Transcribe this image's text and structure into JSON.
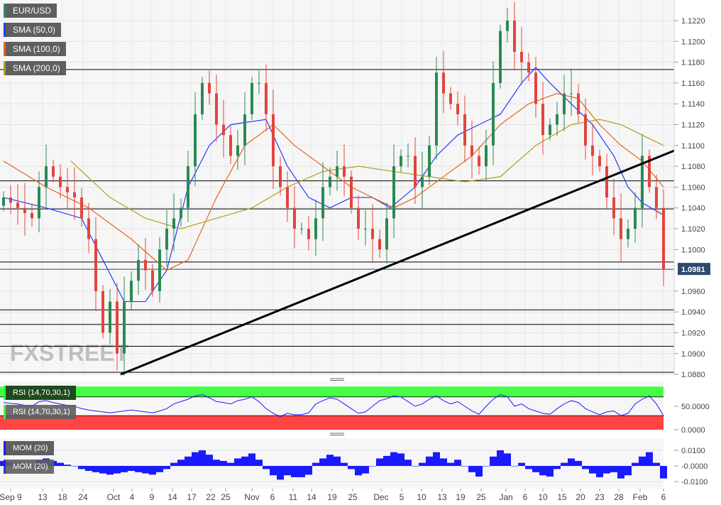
{
  "legend": {
    "symbol": {
      "label": "EUR/USD",
      "color": "#2e8b70"
    },
    "sma50": {
      "label": "SMA (50,0)",
      "color": "#1f3cff"
    },
    "sma100": {
      "label": "SMA (100,0)",
      "color": "#e8641e"
    },
    "sma200": {
      "label": "SMA (200,0)",
      "color": "#b0a020"
    },
    "rsi": {
      "label": "RSI (14,70,30,1)"
    },
    "mom": {
      "label": "MOM (20)"
    }
  },
  "watermark": "FXSTREET",
  "colors": {
    "up": "#2a8a52",
    "down": "#e2453c",
    "rsi_overbought": "#44ff44",
    "rsi_oversold": "#ff4444",
    "indicator": "#1a1aff",
    "price_badge": "#2d4a6e"
  },
  "chart_data": [
    {
      "type": "candlestick",
      "title": "EUR/USD",
      "ylim": [
        1.0875,
        1.124
      ],
      "y_ticks": [
        "1.1220",
        "1.1200",
        "1.1180",
        "1.1160",
        "1.1140",
        "1.1120",
        "1.1100",
        "1.1080",
        "1.1060",
        "1.1040",
        "1.1020",
        "1.1000",
        "1.0960",
        "1.0940",
        "1.0920",
        "1.0900",
        "1.0880"
      ],
      "x_ticks": [
        "Sep 9",
        "13",
        "18",
        "24",
        "Oct",
        "4",
        "9",
        "14",
        "17",
        "22",
        "25",
        "Nov",
        "6",
        "11",
        "14",
        "19",
        "25",
        "Dec",
        "5",
        "10",
        "13",
        "19",
        "25",
        "Jan",
        "6",
        "10",
        "15",
        "20",
        "23",
        "28",
        "Feb",
        "6"
      ],
      "closes": [
        1.105,
        1.1045,
        1.104,
        1.1035,
        1.103,
        1.106,
        1.108,
        1.107,
        1.106,
        1.1055,
        1.105,
        1.103,
        1.101,
        1.096,
        1.092,
        1.095,
        1.09,
        1.095,
        1.097,
        1.099,
        1.098,
        1.096,
        1.1,
        1.102,
        1.103,
        1.104,
        1.108,
        1.113,
        1.116,
        1.115,
        1.112,
        1.111,
        1.109,
        1.11,
        1.113,
        1.116,
        1.116,
        1.113,
        1.108,
        1.106,
        1.104,
        1.102,
        1.102,
        1.101,
        1.103,
        1.106,
        1.107,
        1.108,
        1.107,
        1.104,
        1.102,
        1.102,
        1.101,
        1.1,
        1.103,
        1.108,
        1.109,
        1.109,
        1.106,
        1.107,
        1.11,
        1.117,
        1.115,
        1.114,
        1.113,
        1.11,
        1.109,
        1.108,
        1.11,
        1.116,
        1.121,
        1.122,
        1.119,
        1.118,
        1.117,
        1.114,
        1.111,
        1.112,
        1.113,
        1.115,
        1.115,
        1.113,
        1.11,
        1.109,
        1.108,
        1.105,
        1.103,
        1.101,
        1.102,
        1.104,
        1.109,
        1.106,
        1.104,
        1.0981
      ],
      "current_price": "1.0981",
      "sma50": [
        [
          0,
          1.105
        ],
        [
          6,
          1.104
        ],
        [
          11,
          1.103
        ],
        [
          14,
          1.099
        ],
        [
          17,
          1.095
        ],
        [
          20,
          1.095
        ],
        [
          23,
          1.098
        ],
        [
          26,
          1.106
        ],
        [
          29,
          1.11
        ],
        [
          32,
          1.112
        ],
        [
          37,
          1.1125
        ],
        [
          40,
          1.108
        ],
        [
          43,
          1.105
        ],
        [
          46,
          1.104
        ],
        [
          49,
          1.105
        ],
        [
          52,
          1.105
        ],
        [
          54.5,
          1.104
        ],
        [
          58,
          1.106
        ],
        [
          61,
          1.109
        ],
        [
          64,
          1.111
        ],
        [
          67,
          1.112
        ],
        [
          70,
          1.113
        ],
        [
          73,
          1.116
        ],
        [
          75,
          1.1175
        ],
        [
          77,
          1.116
        ],
        [
          80,
          1.114
        ],
        [
          83,
          1.112
        ],
        [
          86,
          1.109
        ],
        [
          88,
          1.106
        ],
        [
          90,
          1.1045
        ],
        [
          93,
          1.1033
        ]
      ],
      "sma100": [
        [
          0,
          1.1085
        ],
        [
          6,
          1.106
        ],
        [
          12,
          1.104
        ],
        [
          18,
          1.101
        ],
        [
          23,
          1.098
        ],
        [
          26,
          1.099
        ],
        [
          30,
          1.105
        ],
        [
          34,
          1.11
        ],
        [
          38,
          1.112
        ],
        [
          41,
          1.11
        ],
        [
          45,
          1.108
        ],
        [
          49,
          1.106
        ],
        [
          52,
          1.105
        ],
        [
          55,
          1.104
        ],
        [
          58,
          1.105
        ],
        [
          62,
          1.107
        ],
        [
          66,
          1.109
        ],
        [
          70,
          1.112
        ],
        [
          74,
          1.114
        ],
        [
          78,
          1.115
        ],
        [
          81,
          1.1145
        ],
        [
          84,
          1.112
        ],
        [
          87,
          1.11
        ],
        [
          90,
          1.1085
        ],
        [
          93,
          1.106
        ]
      ],
      "sma200": [
        [
          9.5,
          1.1085
        ],
        [
          15,
          1.105
        ],
        [
          20,
          1.103
        ],
        [
          25,
          1.102
        ],
        [
          30,
          1.103
        ],
        [
          35,
          1.104
        ],
        [
          40,
          1.106
        ],
        [
          45,
          1.1075
        ],
        [
          50,
          1.108
        ],
        [
          55,
          1.1075
        ],
        [
          60,
          1.107
        ],
        [
          65,
          1.1065
        ],
        [
          70,
          1.107
        ],
        [
          75,
          1.11
        ],
        [
          80,
          1.112
        ],
        [
          84,
          1.1125
        ],
        [
          87,
          1.112
        ],
        [
          90,
          1.111
        ],
        [
          93,
          1.11
        ]
      ],
      "horizontal_levels": [
        1.1173,
        1.1066,
        1.1039,
        1.0988,
        1.0942,
        1.0928,
        1.0907,
        1.0882
      ],
      "trendline": [
        [
          16.5,
          1.088
        ],
        [
          95,
          1.1095
        ]
      ]
    },
    {
      "type": "line",
      "title": "RSI (14,70,30,1)",
      "ylim": [
        0,
        100
      ],
      "y_ticks": [
        "50.0000",
        "0.0000"
      ],
      "bands": {
        "overbought": 70,
        "oversold": 30
      },
      "values": [
        58,
        56,
        55,
        52,
        50,
        60,
        62,
        58,
        55,
        52,
        50,
        45,
        42,
        40,
        38,
        36,
        38,
        40,
        42,
        40,
        38,
        36,
        40,
        45,
        55,
        60,
        65,
        72,
        75,
        68,
        60,
        58,
        55,
        62,
        65,
        70,
        60,
        45,
        35,
        28,
        35,
        32,
        32,
        36,
        55,
        62,
        68,
        65,
        55,
        45,
        35,
        38,
        50,
        62,
        66,
        72,
        70,
        60,
        50,
        55,
        65,
        72,
        62,
        55,
        60,
        50,
        40,
        33,
        50,
        65,
        75,
        70,
        50,
        55,
        45,
        40,
        35,
        33,
        45,
        55,
        62,
        58,
        45,
        38,
        32,
        38,
        40,
        30,
        35,
        55,
        65,
        72,
        55,
        30
      ]
    },
    {
      "type": "bar",
      "title": "MOM (20)",
      "ylim": [
        -0.012,
        0.0165
      ],
      "y_ticks": [
        "0.0100",
        "-0.0000",
        "-0.0100"
      ],
      "values": [
        0.0032,
        0.0024,
        0.002,
        0.0008,
        0,
        0.004,
        0.0048,
        0.0032,
        0.002,
        0.0008,
        0,
        -0.002,
        -0.0032,
        -0.004,
        -0.0048,
        -0.0056,
        -0.0048,
        -0.004,
        -0.0032,
        -0.004,
        -0.0048,
        -0.0056,
        -0.004,
        -0.002,
        0.002,
        0.004,
        0.006,
        0.0088,
        0.01,
        0.0072,
        0.004,
        0.0032,
        0.002,
        0.0048,
        0.006,
        0.008,
        0.004,
        -0.002,
        -0.006,
        -0.0088,
        -0.006,
        -0.0072,
        -0.0072,
        -0.0056,
        0.002,
        0.0048,
        0.0072,
        0.006,
        0.002,
        -0.002,
        -0.006,
        -0.0048,
        0,
        0.0048,
        0.0064,
        0.0088,
        0.008,
        0.004,
        0,
        0.002,
        0.006,
        0.0088,
        0.0048,
        0.002,
        0.004,
        0,
        -0.004,
        -0.0068,
        0,
        0.006,
        0.01,
        0.008,
        0,
        0.002,
        -0.002,
        -0.004,
        -0.006,
        -0.0068,
        -0.002,
        0.002,
        0.0048,
        0.0032,
        -0.002,
        -0.0048,
        -0.0072,
        -0.0048,
        -0.004,
        -0.008,
        -0.006,
        0.002,
        0.006,
        0.0088,
        0.002,
        -0.008
      ]
    }
  ]
}
